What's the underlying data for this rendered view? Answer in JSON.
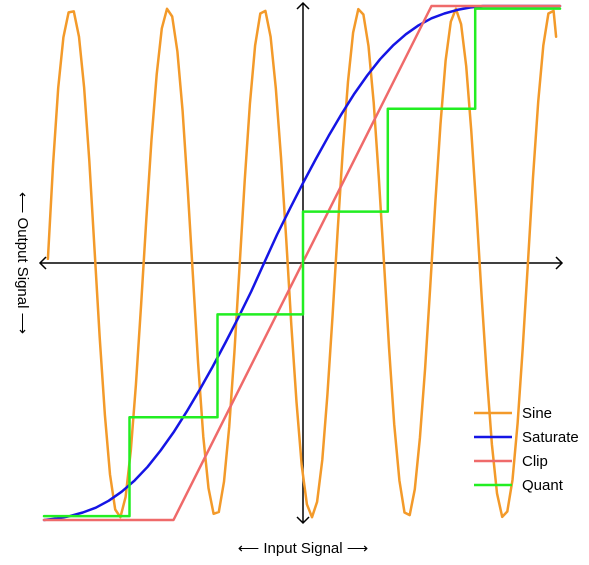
{
  "chart_data": {
    "type": "line",
    "title": "",
    "xlabel": "⟵ Input Signal ⟶",
    "ylabel": "⟵ Output Signal ⟶",
    "xlim": [
      -1,
      1
    ],
    "ylim": [
      -1,
      1
    ],
    "grid": false,
    "legend": "bottom-right",
    "series": [
      {
        "name": "Sine",
        "color": "#f39a2a",
        "x": [
          -0.985,
          -0.965,
          -0.945,
          -0.925,
          -0.905,
          -0.885,
          -0.865,
          -0.845,
          -0.825,
          -0.805,
          -0.785,
          -0.765,
          -0.745,
          -0.725,
          -0.705,
          -0.685,
          -0.665,
          -0.645,
          -0.625,
          -0.605,
          -0.585,
          -0.565,
          -0.545,
          -0.525,
          -0.505,
          -0.485,
          -0.465,
          -0.445,
          -0.425,
          -0.405,
          -0.385,
          -0.365,
          -0.345,
          -0.325,
          -0.305,
          -0.285,
          -0.265,
          -0.245,
          -0.225,
          -0.205,
          -0.185,
          -0.165,
          -0.145,
          -0.125,
          -0.105,
          -0.085,
          -0.065,
          -0.045,
          -0.025,
          -0.005,
          0.015,
          0.035,
          0.055,
          0.075,
          0.095,
          0.115,
          0.135,
          0.155,
          0.175,
          0.195,
          0.215,
          0.235,
          0.255,
          0.275,
          0.295,
          0.315,
          0.335,
          0.355,
          0.375,
          0.395,
          0.415,
          0.435,
          0.455,
          0.475,
          0.495,
          0.515,
          0.535,
          0.555,
          0.575,
          0.595,
          0.615,
          0.635,
          0.655,
          0.675,
          0.695,
          0.715,
          0.735,
          0.755,
          0.775,
          0.795,
          0.815,
          0.835,
          0.855,
          0.875,
          0.895,
          0.915,
          0.935,
          0.955,
          0.975,
          0.985
        ],
        "y": [
          0.016,
          0.386,
          0.681,
          0.878,
          0.975,
          0.979,
          0.88,
          0.684,
          0.398,
          0.055,
          -0.29,
          -0.592,
          -0.823,
          -0.959,
          -0.989,
          -0.91,
          -0.73,
          -0.474,
          -0.163,
          0.169,
          0.48,
          0.734,
          0.913,
          0.989,
          0.959,
          0.823,
          0.592,
          0.29,
          -0.048,
          -0.39,
          -0.676,
          -0.876,
          -0.976,
          -0.969,
          -0.851,
          -0.638,
          -0.348,
          -0.017,
          0.32,
          0.619,
          0.846,
          0.971,
          0.981,
          0.88,
          0.681,
          0.411,
          0.094,
          -0.24,
          -0.541,
          -0.787,
          -0.939,
          -0.989,
          -0.929,
          -0.766,
          -0.513,
          -0.203,
          0.128,
          0.439,
          0.706,
          0.896,
          0.988,
          0.967,
          0.844,
          0.624,
          0.333,
          0.001,
          -0.333,
          -0.627,
          -0.846,
          -0.971,
          -0.981,
          -0.88,
          -0.681,
          -0.411,
          -0.094,
          0.24,
          0.541,
          0.787,
          0.939,
          0.989,
          0.929,
          0.766,
          0.513,
          0.203,
          -0.128,
          -0.439,
          -0.706,
          -0.896,
          -0.988,
          -0.967,
          -0.844,
          -0.624,
          -0.333,
          -0.001,
          0.333,
          0.627,
          0.846,
          0.971,
          0.981,
          0.88
        ]
      },
      {
        "name": "Saturate",
        "color": "#1515e5",
        "x": [
          -1.0,
          -0.95,
          -0.9,
          -0.85,
          -0.8,
          -0.75,
          -0.7,
          -0.65,
          -0.6,
          -0.55,
          -0.5,
          -0.45,
          -0.4,
          -0.35,
          -0.3,
          -0.25,
          -0.2,
          -0.15,
          -0.1,
          -0.05,
          0.0,
          0.05,
          0.1,
          0.15,
          0.2,
          0.25,
          0.3,
          0.35,
          0.4,
          0.45,
          0.5,
          0.55,
          0.6,
          0.65,
          0.7,
          0.75,
          0.8,
          0.85,
          0.9,
          0.95,
          1.0
        ],
        "y": [
          -1.0,
          -0.994,
          -0.985,
          -0.971,
          -0.952,
          -0.925,
          -0.89,
          -0.846,
          -0.793,
          -0.73,
          -0.659,
          -0.58,
          -0.495,
          -0.405,
          -0.311,
          -0.213,
          -0.111,
          -0.0,
          0.111,
          0.213,
          0.311,
          0.405,
          0.495,
          0.58,
          0.659,
          0.73,
          0.793,
          0.846,
          0.89,
          0.925,
          0.952,
          0.971,
          0.985,
          0.994,
          1.0,
          1.0,
          1.0,
          1.0,
          1.0,
          1.0,
          1.0
        ]
      },
      {
        "name": "Clip",
        "color": "#ef6a6a",
        "x": [
          -1.0,
          -0.5,
          0.5,
          1.0
        ],
        "y": [
          -1.0,
          -1.0,
          1.0,
          1.0
        ]
      },
      {
        "name": "Quant",
        "color": "#22ee22",
        "x": [
          -1.0,
          -0.67,
          -0.67,
          -0.33,
          -0.33,
          0.0,
          0.0,
          0.33,
          0.33,
          0.67,
          0.67,
          1.0
        ],
        "y": [
          -0.985,
          -0.985,
          -0.6,
          -0.6,
          -0.2,
          -0.2,
          0.2,
          0.2,
          0.6,
          0.6,
          0.99,
          0.99
        ]
      }
    ]
  }
}
